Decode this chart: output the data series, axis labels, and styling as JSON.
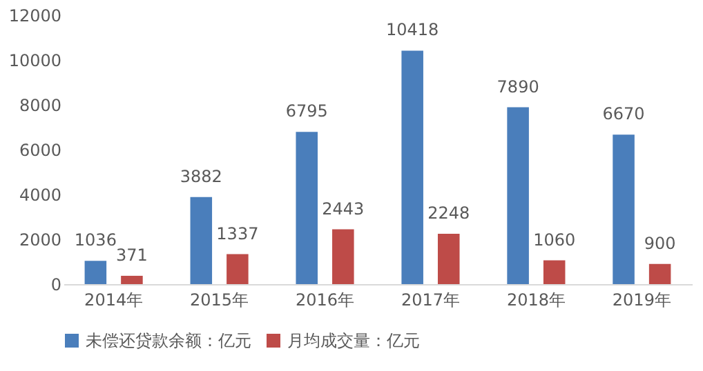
{
  "chart_data": {
    "type": "bar",
    "categories": [
      "2014年",
      "2015年",
      "2016年",
      "2017年",
      "2018年",
      "2019年"
    ],
    "series": [
      {
        "name": "未偿还贷款余额：亿元",
        "color": "#4a7ebb",
        "values": [
          1036,
          3882,
          6795,
          10418,
          7890,
          6670
        ]
      },
      {
        "name": "月均成交量：亿元",
        "color": "#be4b48",
        "values": [
          371,
          1337,
          2443,
          2248,
          1060,
          900
        ]
      }
    ],
    "ylim": [
      0,
      12000
    ],
    "yticks": [
      0,
      2000,
      4000,
      6000,
      8000,
      10000,
      12000
    ],
    "grid": false,
    "legend": "bottom",
    "data_labels": true
  }
}
